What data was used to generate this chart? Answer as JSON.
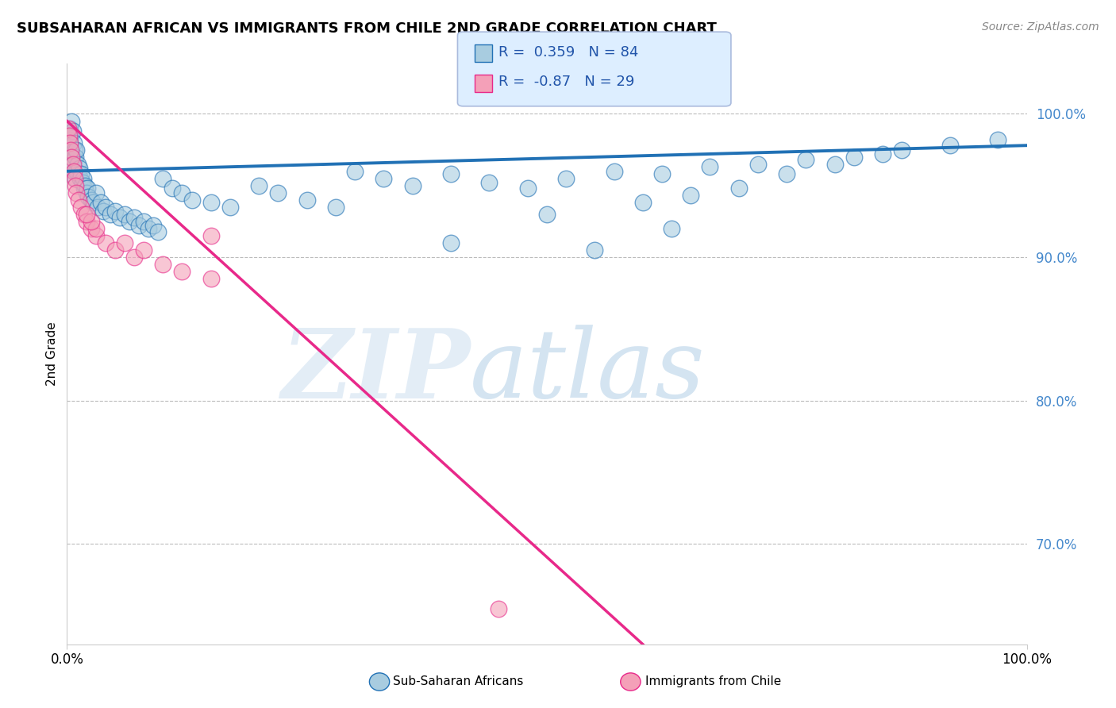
{
  "title": "SUBSAHARAN AFRICAN VS IMMIGRANTS FROM CHILE 2ND GRADE CORRELATION CHART",
  "source_text": "Source: ZipAtlas.com",
  "ylabel": "2nd Grade",
  "xlim": [
    0.0,
    1.0
  ],
  "ylim": [
    0.63,
    1.035
  ],
  "blue_R": 0.359,
  "blue_N": 84,
  "pink_R": -0.87,
  "pink_N": 29,
  "blue_scatter_x": [
    0.001,
    0.002,
    0.003,
    0.003,
    0.004,
    0.004,
    0.005,
    0.005,
    0.006,
    0.006,
    0.007,
    0.007,
    0.008,
    0.008,
    0.009,
    0.009,
    0.01,
    0.01,
    0.011,
    0.012,
    0.013,
    0.014,
    0.015,
    0.016,
    0.017,
    0.018,
    0.019,
    0.02,
    0.021,
    0.022,
    0.025,
    0.027,
    0.03,
    0.032,
    0.035,
    0.038,
    0.04,
    0.045,
    0.05,
    0.055,
    0.06,
    0.065,
    0.07,
    0.075,
    0.08,
    0.085,
    0.09,
    0.095,
    0.1,
    0.11,
    0.12,
    0.13,
    0.15,
    0.17,
    0.2,
    0.22,
    0.25,
    0.28,
    0.3,
    0.33,
    0.36,
    0.4,
    0.44,
    0.48,
    0.52,
    0.57,
    0.62,
    0.67,
    0.72,
    0.77,
    0.82,
    0.87,
    0.92,
    0.97,
    0.63,
    0.4,
    0.5,
    0.55,
    0.7,
    0.8,
    0.6,
    0.65,
    0.75,
    0.85
  ],
  "blue_scatter_y": [
    0.975,
    0.982,
    0.978,
    0.99,
    0.985,
    0.97,
    0.995,
    0.972,
    0.988,
    0.965,
    0.98,
    0.968,
    0.975,
    0.96,
    0.97,
    0.955,
    0.975,
    0.96,
    0.965,
    0.958,
    0.962,
    0.955,
    0.958,
    0.952,
    0.955,
    0.948,
    0.95,
    0.945,
    0.948,
    0.942,
    0.94,
    0.938,
    0.945,
    0.935,
    0.938,
    0.932,
    0.935,
    0.93,
    0.932,
    0.928,
    0.93,
    0.925,
    0.928,
    0.922,
    0.925,
    0.92,
    0.922,
    0.918,
    0.955,
    0.948,
    0.945,
    0.94,
    0.938,
    0.935,
    0.95,
    0.945,
    0.94,
    0.935,
    0.96,
    0.955,
    0.95,
    0.958,
    0.952,
    0.948,
    0.955,
    0.96,
    0.958,
    0.963,
    0.965,
    0.968,
    0.97,
    0.975,
    0.978,
    0.982,
    0.92,
    0.91,
    0.93,
    0.905,
    0.948,
    0.965,
    0.938,
    0.943,
    0.958,
    0.972
  ],
  "pink_scatter_x": [
    0.001,
    0.002,
    0.003,
    0.004,
    0.005,
    0.006,
    0.007,
    0.008,
    0.009,
    0.01,
    0.012,
    0.015,
    0.018,
    0.02,
    0.025,
    0.03,
    0.04,
    0.05,
    0.07,
    0.1,
    0.12,
    0.15,
    0.08,
    0.06,
    0.03,
    0.025,
    0.02,
    0.45,
    0.15
  ],
  "pink_scatter_y": [
    0.99,
    0.985,
    0.98,
    0.975,
    0.97,
    0.965,
    0.96,
    0.955,
    0.95,
    0.945,
    0.94,
    0.935,
    0.93,
    0.925,
    0.92,
    0.915,
    0.91,
    0.905,
    0.9,
    0.895,
    0.89,
    0.885,
    0.905,
    0.91,
    0.92,
    0.925,
    0.93,
    0.655,
    0.915
  ],
  "blue_line_color": "#2171b5",
  "pink_line_color": "#e8298a",
  "blue_color": "#a8cce0",
  "pink_color": "#f4a0b8",
  "ytick_positions": [
    0.7,
    0.8,
    0.9,
    1.0
  ],
  "ytick_labels": [
    "70.0%",
    "80.0%",
    "90.0%",
    "100.0%"
  ],
  "dashed_line_y": 1.0,
  "dashed_line_y2": 0.7,
  "dashed_line_y3": 0.8,
  "dashed_line_y4": 0.9,
  "blue_line_x": [
    0.0,
    1.0
  ],
  "blue_line_y": [
    0.96,
    0.978
  ],
  "pink_line_x": [
    0.0,
    0.6
  ],
  "pink_line_y": [
    0.995,
    0.63
  ]
}
